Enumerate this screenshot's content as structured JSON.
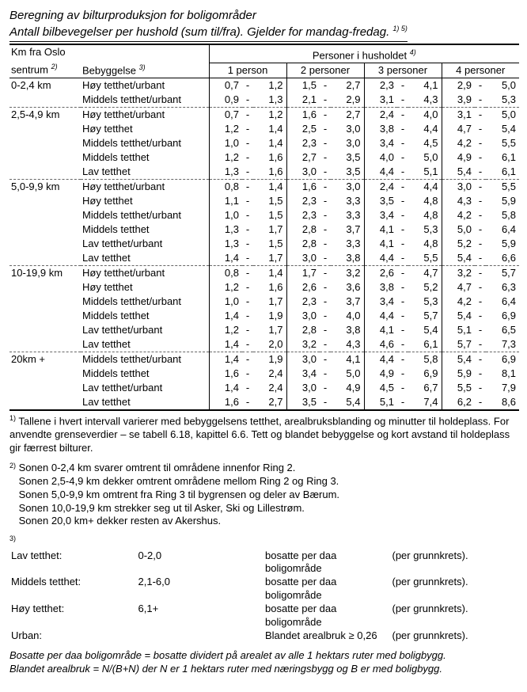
{
  "title_line1": "Beregning av bilturproduksjon for boligområder",
  "title_line2": "Antall bilbevegelser per hushold (sum til/fra). Gjelder for mandag-fredag.",
  "title_sup": "1) 5)",
  "header": {
    "dist_col_l1": "Km fra Oslo",
    "dist_col_l2": "sentrum",
    "dist_sup": "2)",
    "bebyg": "Bebyggelse",
    "bebyg_sup": "3)",
    "persons_header": "Personer i husholdet",
    "persons_sup": "4)",
    "p1": "1 person",
    "p2": "2 personer",
    "p3": "3 personer",
    "p4": "4 personer"
  },
  "groups": [
    {
      "dist": "0-2,4 km",
      "rows": [
        {
          "bebyg": "Høy tetthet/urbant",
          "v": [
            "0,7",
            "1,2",
            "1,5",
            "2,7",
            "2,3",
            "4,1",
            "2,9",
            "5,0"
          ]
        },
        {
          "bebyg": "Middels tetthet/urbant",
          "v": [
            "0,9",
            "1,3",
            "2,1",
            "2,9",
            "3,1",
            "4,3",
            "3,9",
            "5,3"
          ]
        }
      ]
    },
    {
      "dist": "2,5-4,9 km",
      "rows": [
        {
          "bebyg": "Høy tetthet/urbant",
          "v": [
            "0,7",
            "1,2",
            "1,6",
            "2,7",
            "2,4",
            "4,0",
            "3,1",
            "5,0"
          ]
        },
        {
          "bebyg": "Høy tetthet",
          "v": [
            "1,2",
            "1,4",
            "2,5",
            "3,0",
            "3,8",
            "4,4",
            "4,7",
            "5,4"
          ]
        },
        {
          "bebyg": "Middels tetthet/urbant",
          "v": [
            "1,0",
            "1,4",
            "2,3",
            "3,0",
            "3,4",
            "4,5",
            "4,2",
            "5,5"
          ]
        },
        {
          "bebyg": "Middels tetthet",
          "v": [
            "1,2",
            "1,6",
            "2,7",
            "3,5",
            "4,0",
            "5,0",
            "4,9",
            "6,1"
          ]
        },
        {
          "bebyg": "Lav tetthet",
          "v": [
            "1,3",
            "1,6",
            "3,0",
            "3,5",
            "4,4",
            "5,1",
            "5,4",
            "6,1"
          ]
        }
      ]
    },
    {
      "dist": "5,0-9,9 km",
      "rows": [
        {
          "bebyg": "Høy tetthet/urbant",
          "v": [
            "0,8",
            "1,4",
            "1,6",
            "3,0",
            "2,4",
            "4,4",
            "3,0",
            "5,5"
          ]
        },
        {
          "bebyg": "Høy tetthet",
          "v": [
            "1,1",
            "1,5",
            "2,3",
            "3,3",
            "3,5",
            "4,8",
            "4,3",
            "5,9"
          ]
        },
        {
          "bebyg": "Middels tetthet/urbant",
          "v": [
            "1,0",
            "1,5",
            "2,3",
            "3,3",
            "3,4",
            "4,8",
            "4,2",
            "5,8"
          ]
        },
        {
          "bebyg": "Middels tetthet",
          "v": [
            "1,3",
            "1,7",
            "2,8",
            "3,7",
            "4,1",
            "5,3",
            "5,0",
            "6,4"
          ]
        },
        {
          "bebyg": "Lav tetthet/urbant",
          "v": [
            "1,3",
            "1,5",
            "2,8",
            "3,3",
            "4,1",
            "4,8",
            "5,2",
            "5,9"
          ]
        },
        {
          "bebyg": "Lav tetthet",
          "v": [
            "1,4",
            "1,7",
            "3,0",
            "3,8",
            "4,4",
            "5,5",
            "5,4",
            "6,6"
          ]
        }
      ]
    },
    {
      "dist": "10-19,9 km",
      "rows": [
        {
          "bebyg": "Høy tetthet/urbant",
          "v": [
            "0,8",
            "1,4",
            "1,7",
            "3,2",
            "2,6",
            "4,7",
            "3,2",
            "5,7"
          ]
        },
        {
          "bebyg": "Høy tetthet",
          "v": [
            "1,2",
            "1,6",
            "2,6",
            "3,6",
            "3,8",
            "5,2",
            "4,7",
            "6,3"
          ]
        },
        {
          "bebyg": "Middels tetthet/urbant",
          "v": [
            "1,0",
            "1,7",
            "2,3",
            "3,7",
            "3,4",
            "5,3",
            "4,2",
            "6,4"
          ]
        },
        {
          "bebyg": "Middels tetthet",
          "v": [
            "1,4",
            "1,9",
            "3,0",
            "4,0",
            "4,4",
            "5,7",
            "5,4",
            "6,9"
          ]
        },
        {
          "bebyg": "Lav tetthet/urbant",
          "v": [
            "1,2",
            "1,7",
            "2,8",
            "3,8",
            "4,1",
            "5,4",
            "5,1",
            "6,5"
          ]
        },
        {
          "bebyg": "Lav tetthet",
          "v": [
            "1,4",
            "2,0",
            "3,2",
            "4,3",
            "4,6",
            "6,1",
            "5,7",
            "7,3"
          ]
        }
      ]
    },
    {
      "dist": "20km +",
      "rows": [
        {
          "bebyg": "Middels tetthet/urbant",
          "v": [
            "1,4",
            "1,9",
            "3,0",
            "4,1",
            "4,4",
            "5,8",
            "5,4",
            "6,9"
          ]
        },
        {
          "bebyg": "Middels tetthet",
          "v": [
            "1,6",
            "2,4",
            "3,4",
            "5,0",
            "4,9",
            "6,9",
            "5,9",
            "8,1"
          ]
        },
        {
          "bebyg": "Lav tetthet/urbant",
          "v": [
            "1,4",
            "2,4",
            "3,0",
            "4,9",
            "4,5",
            "6,7",
            "5,5",
            "7,9"
          ]
        },
        {
          "bebyg": "Lav tetthet",
          "v": [
            "1,6",
            "2,7",
            "3,5",
            "5,4",
            "5,1",
            "7,4",
            "6,2",
            "8,6"
          ]
        }
      ]
    }
  ],
  "fn1": "Tallene i hvert intervall varierer med bebyggelsens tetthet, arealbruksblanding og minutter til holdeplass. For anvendte grenseverdier – se tabell 6.18, kapittel 6.6. Tett og blandet bebyggelse og kort avstand til holdeplass gir færrest bilturer.",
  "fn2": [
    "Sonen 0-2,4 km svarer omtrent til områdene innenfor Ring 2.",
    "Sonen 2,5-4,9 km dekker omtrent områdene mellom Ring 2 og Ring 3.",
    "Sonen 5,0-9,9 km omtrent fra Ring 3 til bygrensen og deler av Bærum.",
    "Sonen 10,0-19,9 km strekker seg ut til Asker, Ski og Lillestrøm.",
    "Sonen 20,0 km+ dekker resten av Akershus."
  ],
  "fn3_rows": [
    [
      "Lav tetthet:",
      "0-2,0",
      "bosatte per daa boligområde",
      "(per grunnkrets)."
    ],
    [
      "Middels tetthet:",
      "2,1-6,0",
      "bosatte per daa boligområde",
      "(per grunnkrets)."
    ],
    [
      "Høy tetthet:",
      "6,1+",
      "bosatte per daa boligområde",
      "(per grunnkrets)."
    ],
    [
      "Urban:",
      "",
      "Blandet arealbruk ≥ 0,26",
      "(per grunnkrets)."
    ]
  ],
  "fn3_ital1": "Bosatte per daa boligområde = bosatte dividert på arealet av alle 1 hektars ruter med boligbygg.",
  "fn3_ital2": "Blandet arealbruk = N/(B+N) der N er 1 hektars ruter med næringsbygg og B er med boligbygg."
}
